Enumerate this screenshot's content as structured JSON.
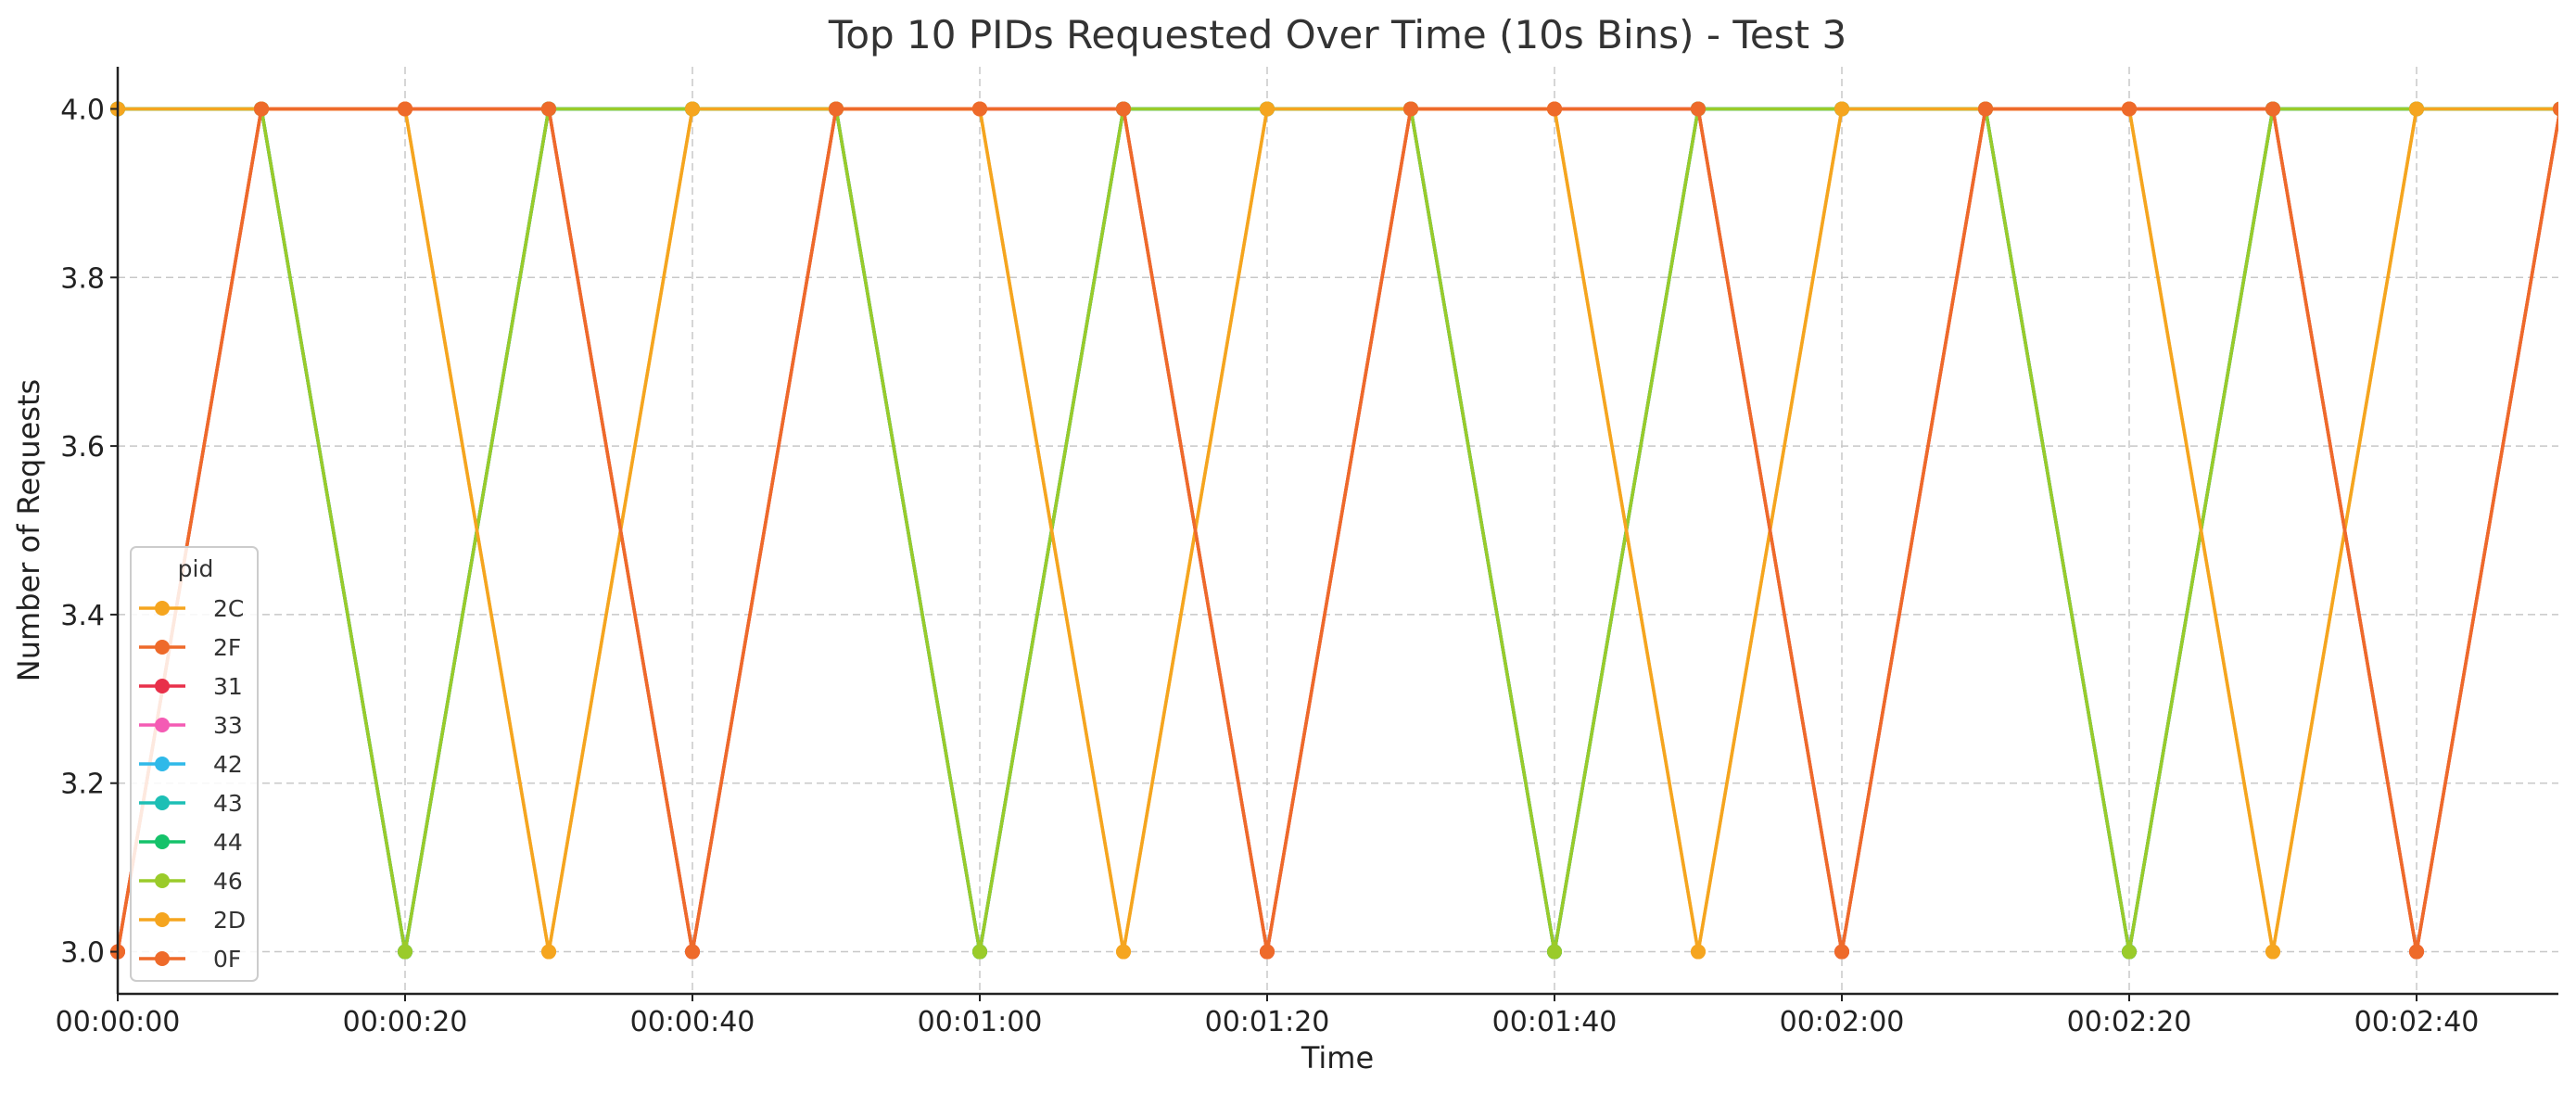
{
  "chart_data": {
    "type": "line",
    "title": "Top 10 PIDs Requested Over Time (10s Bins) - Test 3",
    "xlabel": "Time",
    "ylabel": "Number of Requests",
    "x": [
      "00:00:00",
      "00:00:10",
      "00:00:20",
      "00:00:30",
      "00:00:40",
      "00:00:50",
      "00:01:00",
      "00:01:10",
      "00:01:20",
      "00:01:30",
      "00:01:40",
      "00:01:50",
      "00:02:00",
      "00:02:10",
      "00:02:20",
      "00:02:30",
      "00:02:40",
      "00:02:50"
    ],
    "xticks": [
      "00:00:00",
      "00:00:20",
      "00:00:40",
      "00:01:00",
      "00:01:20",
      "00:01:40",
      "00:02:00",
      "00:02:20",
      "00:02:40"
    ],
    "yticks": [
      "3.0",
      "3.2",
      "3.4",
      "3.6",
      "3.8",
      "4.0"
    ],
    "ylim": [
      2.95,
      4.05
    ],
    "grid": true,
    "legend_title": "pid",
    "legend_position": "lower-left",
    "series": [
      {
        "name": "2C",
        "color": "#F5A51F",
        "values": [
          4,
          4,
          4,
          3,
          4,
          4,
          4,
          3,
          4,
          4,
          4,
          3,
          4,
          4,
          4,
          3,
          4,
          4
        ]
      },
      {
        "name": "2F",
        "color": "#EE6A2A",
        "values": [
          3,
          4,
          4,
          4,
          3,
          4,
          4,
          4,
          3,
          4,
          4,
          4,
          3,
          4,
          4,
          4,
          3,
          4
        ]
      },
      {
        "name": "31",
        "color": "#E8304A",
        "values": [
          3,
          4,
          4,
          4,
          3,
          4,
          4,
          4,
          3,
          4,
          4,
          4,
          3,
          4,
          4,
          4,
          3,
          4
        ]
      },
      {
        "name": "33",
        "color": "#F45BB4",
        "values": [
          4,
          4,
          3,
          4,
          4,
          4,
          3,
          4,
          4,
          4,
          3,
          4,
          4,
          4,
          3,
          4,
          4,
          4
        ]
      },
      {
        "name": "42",
        "color": "#2FB9E9",
        "values": [
          4,
          4,
          3,
          4,
          4,
          4,
          3,
          4,
          4,
          4,
          3,
          4,
          4,
          4,
          3,
          4,
          4,
          4
        ]
      },
      {
        "name": "43",
        "color": "#1DBFB5",
        "values": [
          4,
          4,
          3,
          4,
          4,
          4,
          3,
          4,
          4,
          4,
          3,
          4,
          4,
          4,
          3,
          4,
          4,
          4
        ]
      },
      {
        "name": "44",
        "color": "#15C26A",
        "values": [
          4,
          4,
          3,
          4,
          4,
          4,
          3,
          4,
          4,
          4,
          3,
          4,
          4,
          4,
          3,
          4,
          4,
          4
        ]
      },
      {
        "name": "46",
        "color": "#9ACB2A",
        "values": [
          4,
          4,
          3,
          4,
          4,
          4,
          3,
          4,
          4,
          4,
          3,
          4,
          4,
          4,
          3,
          4,
          4,
          4
        ]
      },
      {
        "name": "2D",
        "color": "#F5A51F",
        "values": [
          4,
          4,
          4,
          3,
          4,
          4,
          4,
          3,
          4,
          4,
          4,
          3,
          4,
          4,
          4,
          3,
          4,
          4
        ]
      },
      {
        "name": "0F",
        "color": "#EE6A2A",
        "values": [
          3,
          4,
          4,
          4,
          3,
          4,
          4,
          4,
          3,
          4,
          4,
          4,
          3,
          4,
          4,
          4,
          3,
          4
        ]
      }
    ]
  }
}
